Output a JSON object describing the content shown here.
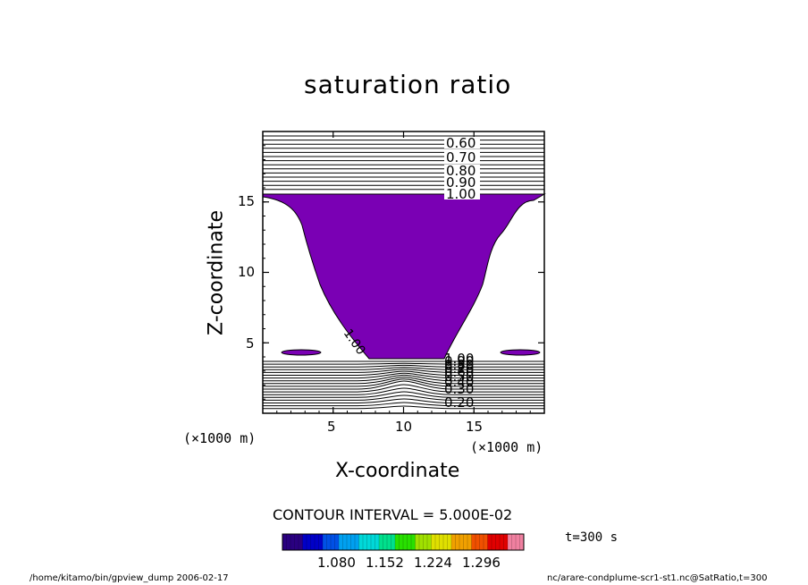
{
  "chart_data": {
    "type": "contour",
    "title": "saturation ratio",
    "xlabel": "X-coordinate",
    "ylabel": "Z-coordinate",
    "x_unit": "(×1000 m)",
    "y_unit": "(×1000 m)",
    "xlim": [
      0,
      20
    ],
    "ylim": [
      0,
      20
    ],
    "x_ticks": [
      5,
      10,
      15
    ],
    "y_ticks": [
      5,
      10,
      15
    ],
    "contour_interval_text": "CONTOUR INTERVAL = 5.000E-02",
    "upper_contour_labels": [
      "0.60",
      "0.70",
      "0.80",
      "0.90",
      "1.00"
    ],
    "lower_contour_labels": [
      "0.20",
      "0.30",
      "0.40",
      "0.50",
      "0.60",
      "0.70",
      "0.80",
      "0.90",
      "1.00"
    ],
    "plume_contour_label": "1.00",
    "plume_color": "#7a00b4",
    "colorbar": {
      "tick_labels": [
        "1.080",
        "1.152",
        "1.224",
        "1.296"
      ],
      "colors": [
        "#2a0080",
        "#0000c8",
        "#0050e6",
        "#00a0f0",
        "#00d8d8",
        "#00e08c",
        "#28e000",
        "#a0e000",
        "#e0e000",
        "#f0a000",
        "#f05000",
        "#e00000",
        "#f080a0"
      ]
    },
    "time_label": "t=300 s",
    "footer_left": "/home/kitamo/bin/gpview_dump  2006-02-17",
    "footer_right": "nc/arare-condplume-scr1-st1.nc@SatRatio,t=300"
  }
}
